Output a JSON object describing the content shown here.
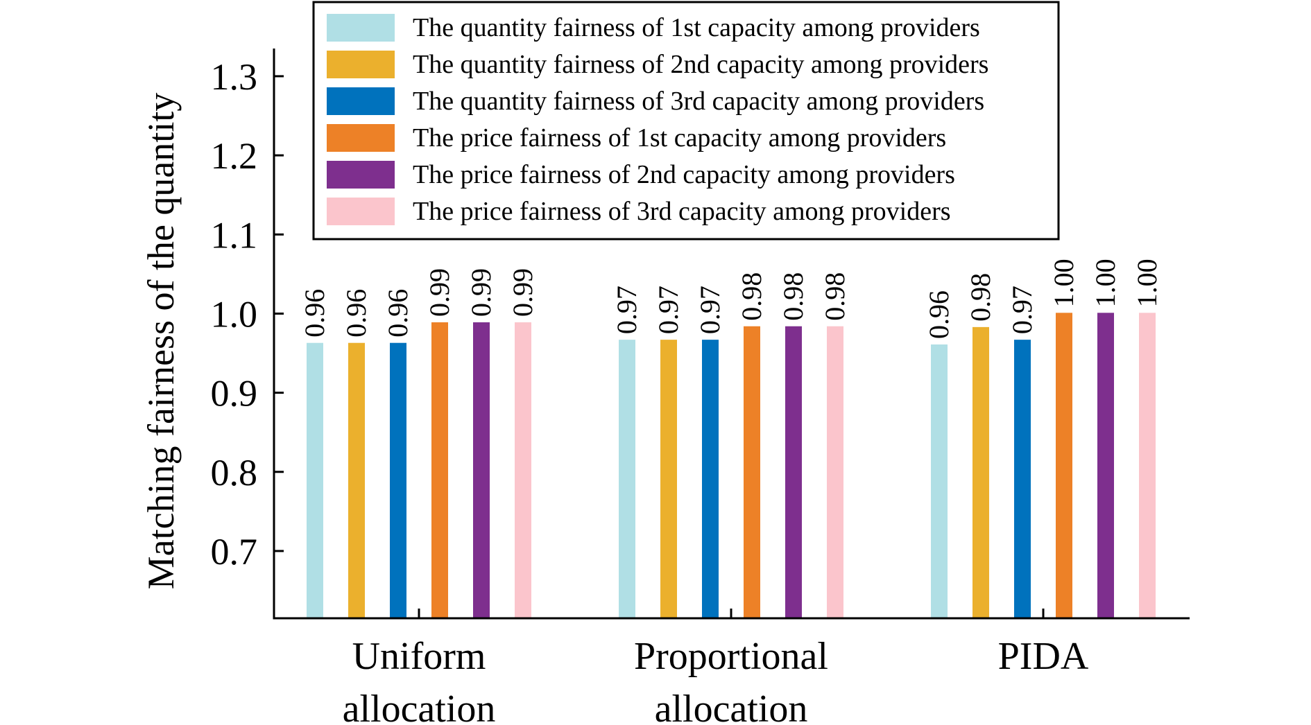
{
  "chart_data": {
    "type": "bar",
    "categories": [
      [
        "Uniform",
        "allocation"
      ],
      [
        "Proportional",
        "allocation"
      ],
      [
        "PIDA"
      ]
    ],
    "ylabel": "Matching fairness of the quantity",
    "xlabel": "",
    "ylim": [
      0.615,
      1.335
    ],
    "yticks": [
      "0.7",
      "0.8",
      "0.9",
      "1.0",
      "1.1",
      "1.2",
      "1.3"
    ],
    "legend_position": "top",
    "series": [
      {
        "name": "The quantity fairness of 1st capacity among providers",
        "color": "#b0dfe5",
        "values": [
          0.963,
          0.967,
          0.961
        ],
        "labels": [
          "0.96",
          "0.97",
          "0.96"
        ]
      },
      {
        "name": "The quantity fairness of 2nd capacity among providers",
        "color": "#ebb02d",
        "values": [
          0.963,
          0.967,
          0.983
        ],
        "labels": [
          "0.96",
          "0.97",
          "0.98"
        ]
      },
      {
        "name": "The quantity fairness of 3rd capacity among providers",
        "color": "#0072bd",
        "values": [
          0.963,
          0.967,
          0.967
        ],
        "labels": [
          "0.96",
          "0.97",
          "0.97"
        ]
      },
      {
        "name": "The price fairness of 1st capacity among providers",
        "color": "#ed8127",
        "values": [
          0.989,
          0.984,
          1.001
        ],
        "labels": [
          "0.99",
          "0.98",
          "1.00"
        ]
      },
      {
        "name": "The price fairness of 2nd capacity among providers",
        "color": "#7e2f8e",
        "values": [
          0.989,
          0.984,
          1.001
        ],
        "labels": [
          "0.99",
          "0.98",
          "1.00"
        ]
      },
      {
        "name": "The price fairness of 3rd capacity among providers",
        "color": "#fbc5cc",
        "values": [
          0.989,
          0.984,
          1.001
        ],
        "labels": [
          "0.99",
          "0.98",
          "1.00"
        ]
      }
    ]
  }
}
